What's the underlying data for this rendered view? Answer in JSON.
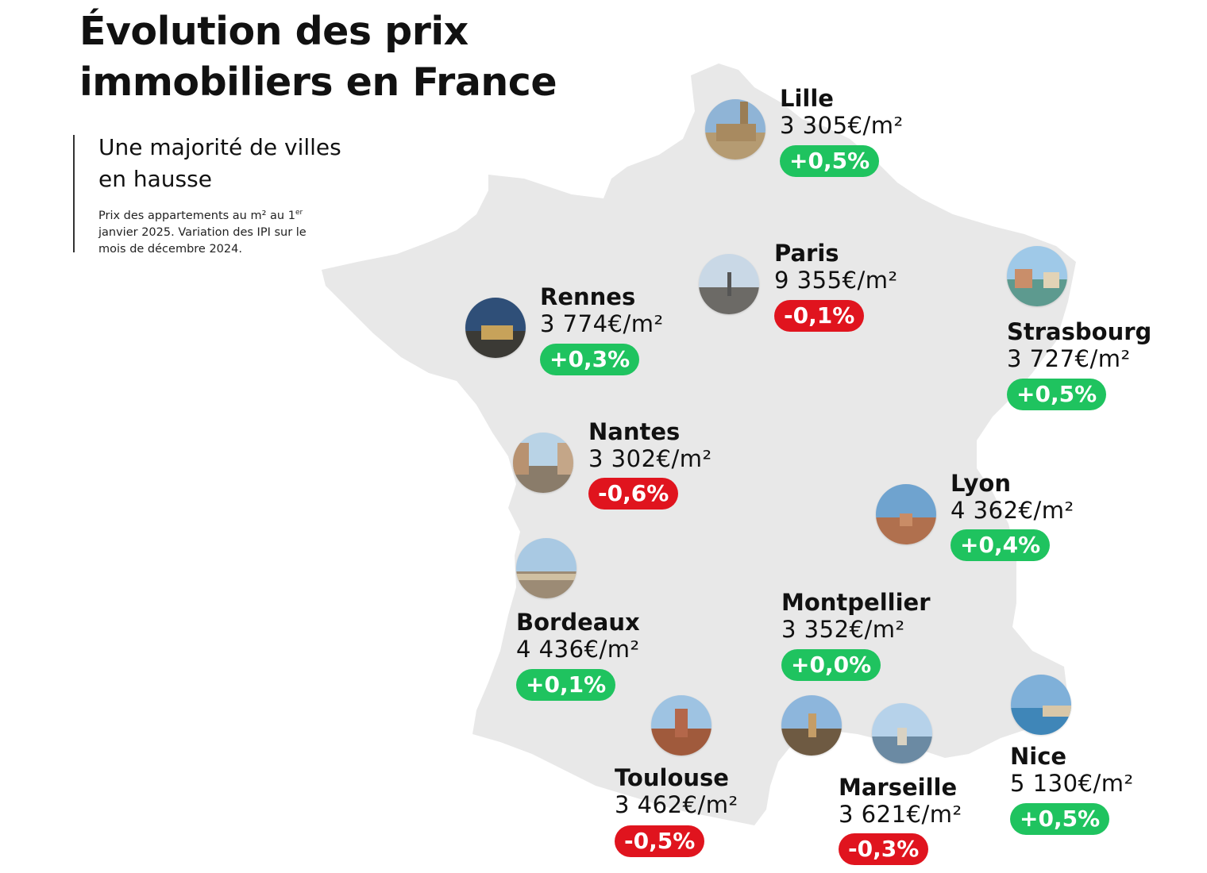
{
  "title_lines": [
    "Évolution des prix",
    "immobiliers en France"
  ],
  "subtitle_lines": [
    "Une majorité de villes",
    "en hausse"
  ],
  "note": {
    "part1": "Prix des appartements au m² au 1",
    "sup": "er",
    "part2": " janvier 2025. Variation des IPI sur le mois de décembre 2024."
  },
  "colors": {
    "map_fill": "#e8e8e8",
    "positive": "#1fc35f",
    "negative": "#e0141e"
  },
  "cities": [
    {
      "name": "Lille",
      "price": "3 305€/m²",
      "change": "+0,5%",
      "trend": "up"
    },
    {
      "name": "Paris",
      "price": "9 355€/m²",
      "change": "-0,1%",
      "trend": "down"
    },
    {
      "name": "Strasbourg",
      "price": "3 727€/m²",
      "change": "+0,5%",
      "trend": "up"
    },
    {
      "name": "Rennes",
      "price": "3 774€/m²",
      "change": "+0,3%",
      "trend": "up"
    },
    {
      "name": "Nantes",
      "price": "3 302€/m²",
      "change": "-0,6%",
      "trend": "down"
    },
    {
      "name": "Lyon",
      "price": "4 362€/m²",
      "change": "+0,4%",
      "trend": "up"
    },
    {
      "name": "Bordeaux",
      "price": "4 436€/m²",
      "change": "+0,1%",
      "trend": "up"
    },
    {
      "name": "Montpellier",
      "price": "3 352€/m²",
      "change": "+0,0%",
      "trend": "up"
    },
    {
      "name": "Nice",
      "price": "5 130€/m²",
      "change": "+0,5%",
      "trend": "up"
    },
    {
      "name": "Toulouse",
      "price": "3 462€/m²",
      "change": "-0,5%",
      "trend": "down"
    },
    {
      "name": "Marseille",
      "price": "3 621€/m²",
      "change": "-0,3%",
      "trend": "down"
    }
  ]
}
